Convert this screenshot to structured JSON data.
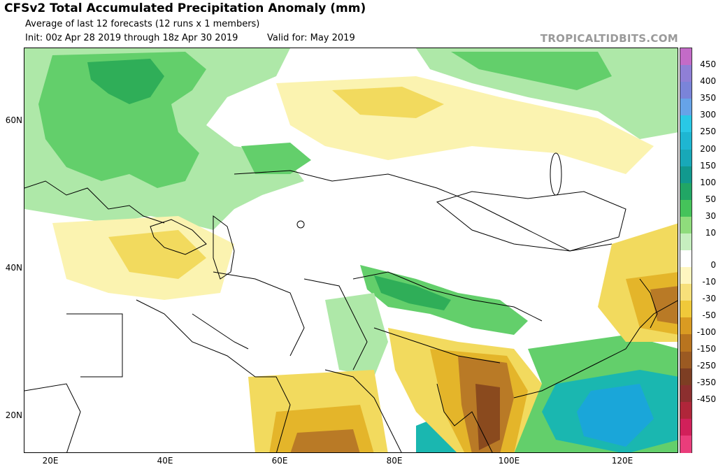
{
  "header": {
    "title": "CFSv2 Total Accumulated Precipitation Anomaly (mm)",
    "subtitle": "Average of last 12 forecasts (12 runs x 1 members)",
    "init": "Init: 00z Apr 28 2019 through 18z Apr 30 2019",
    "valid": "Valid for: May 2019",
    "brand": "TROPICALTIDBITS.COM"
  },
  "map": {
    "lat_labels": [
      "60N",
      "40N",
      "20N"
    ],
    "lon_labels": [
      "20E",
      "40E",
      "60E",
      "80E",
      "100E",
      "120E"
    ],
    "colors": {
      "land": "#ffffff",
      "border": "#000000",
      "wet_light": "#aee8a8",
      "wet_mid": "#63cf6b",
      "wet_strong": "#2fae58",
      "wet_deep": "#1b8f6b",
      "teal": "#1ab7b0",
      "cyan": "#1aa6d9",
      "dry_light": "#fbf3b0",
      "dry_mid": "#f2da5e",
      "dry_strong": "#e4b52a",
      "dry_deep": "#b97a26",
      "brown": "#8a4a1e"
    }
  },
  "colorbar": {
    "labels": [
      "450",
      "400",
      "350",
      "300",
      "250",
      "200",
      "150",
      "100",
      "50",
      "30",
      "10",
      "0",
      "-10",
      "-30",
      "-50",
      "-100",
      "-150",
      "-250",
      "-350",
      "-450"
    ],
    "colors": [
      "#c36bc7",
      "#8f7fd6",
      "#7a84d9",
      "#66a3e8",
      "#29c8e6",
      "#1eb6d2",
      "#18a8b8",
      "#11998e",
      "#21a665",
      "#45c35a",
      "#8fdc7c",
      "#c6efbf",
      "#ffffff",
      "#fff6c0",
      "#f7e07a",
      "#f0c93a",
      "#d99b22",
      "#b8741f",
      "#9b5a22",
      "#7d3e23",
      "#8c2f2f",
      "#b0263a",
      "#d1205a",
      "#ea3d7b"
    ]
  }
}
